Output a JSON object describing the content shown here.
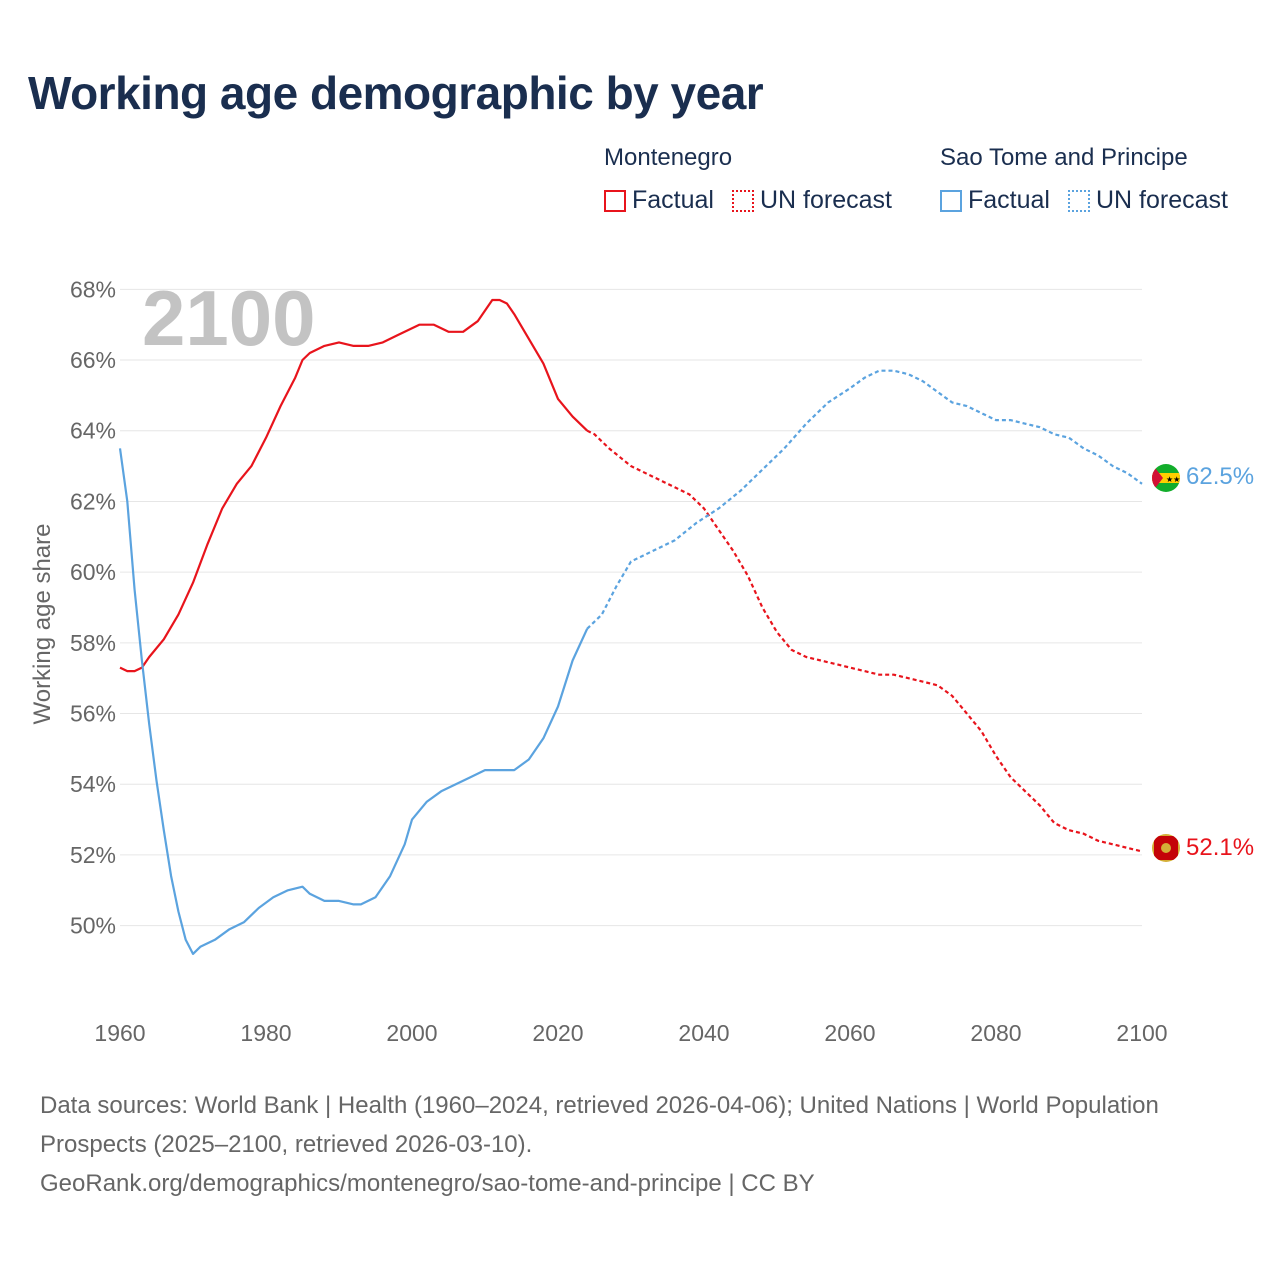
{
  "title": "Working age demographic by year",
  "legend": {
    "groups": [
      {
        "name": "Montenegro",
        "color": "#e8141c",
        "factual": "Factual",
        "forecast": "UN forecast"
      },
      {
        "name": "Sao Tome and Principe",
        "color": "#5ba3df",
        "factual": "Factual",
        "forecast": "UN forecast"
      }
    ]
  },
  "year_label": "2100",
  "footer": {
    "sources": "Data sources: World Bank | Health (1960–2024, retrieved 2026-04-06); United Nations | World Population Prospects (2025–2100, retrieved 2026-03-10).",
    "url": "GeoRank.org/demographics/montenegro/sao-tome-and-principe | CC BY"
  },
  "chart_data": {
    "type": "line",
    "title": "Working age demographic by year",
    "xlabel": "",
    "ylabel": "Working age share",
    "xlim": [
      1960,
      2100
    ],
    "ylim": [
      47.5,
      69
    ],
    "x_ticks": [
      1960,
      1980,
      2000,
      2020,
      2040,
      2060,
      2080,
      2100
    ],
    "y_ticks": [
      50,
      52,
      54,
      56,
      58,
      60,
      62,
      64,
      66,
      68
    ],
    "y_tick_labels": [
      "50%",
      "52%",
      "54%",
      "56%",
      "58%",
      "60%",
      "62%",
      "64%",
      "66%",
      "68%"
    ],
    "grid": true,
    "forecast_start": 2024,
    "series": [
      {
        "name": "Montenegro",
        "color": "#e8141c",
        "end_label": "52.1%",
        "points": [
          [
            1960,
            57.3
          ],
          [
            1961,
            57.2
          ],
          [
            1962,
            57.2
          ],
          [
            1963,
            57.3
          ],
          [
            1964,
            57.6
          ],
          [
            1966,
            58.1
          ],
          [
            1968,
            58.8
          ],
          [
            1970,
            59.7
          ],
          [
            1972,
            60.8
          ],
          [
            1974,
            61.8
          ],
          [
            1976,
            62.5
          ],
          [
            1978,
            63.0
          ],
          [
            1980,
            63.8
          ],
          [
            1982,
            64.7
          ],
          [
            1984,
            65.5
          ],
          [
            1985,
            66.0
          ],
          [
            1986,
            66.2
          ],
          [
            1988,
            66.4
          ],
          [
            1990,
            66.5
          ],
          [
            1992,
            66.4
          ],
          [
            1994,
            66.4
          ],
          [
            1996,
            66.5
          ],
          [
            1998,
            66.7
          ],
          [
            2000,
            66.9
          ],
          [
            2001,
            67.0
          ],
          [
            2003,
            67.0
          ],
          [
            2005,
            66.8
          ],
          [
            2007,
            66.8
          ],
          [
            2009,
            67.1
          ],
          [
            2011,
            67.7
          ],
          [
            2012,
            67.7
          ],
          [
            2013,
            67.6
          ],
          [
            2014,
            67.3
          ],
          [
            2016,
            66.6
          ],
          [
            2018,
            65.9
          ],
          [
            2020,
            64.9
          ],
          [
            2022,
            64.4
          ],
          [
            2024,
            64.0
          ],
          [
            2025,
            63.9
          ],
          [
            2027,
            63.5
          ],
          [
            2030,
            63.0
          ],
          [
            2033,
            62.7
          ],
          [
            2036,
            62.4
          ],
          [
            2038,
            62.2
          ],
          [
            2040,
            61.8
          ],
          [
            2042,
            61.2
          ],
          [
            2044,
            60.6
          ],
          [
            2046,
            59.9
          ],
          [
            2048,
            59.0
          ],
          [
            2050,
            58.3
          ],
          [
            2052,
            57.8
          ],
          [
            2054,
            57.6
          ],
          [
            2056,
            57.5
          ],
          [
            2058,
            57.4
          ],
          [
            2060,
            57.3
          ],
          [
            2062,
            57.2
          ],
          [
            2064,
            57.1
          ],
          [
            2066,
            57.1
          ],
          [
            2068,
            57.0
          ],
          [
            2070,
            56.9
          ],
          [
            2072,
            56.8
          ],
          [
            2074,
            56.5
          ],
          [
            2076,
            56.0
          ],
          [
            2078,
            55.5
          ],
          [
            2080,
            54.8
          ],
          [
            2082,
            54.2
          ],
          [
            2084,
            53.8
          ],
          [
            2086,
            53.4
          ],
          [
            2088,
            52.9
          ],
          [
            2090,
            52.7
          ],
          [
            2092,
            52.6
          ],
          [
            2094,
            52.4
          ],
          [
            2096,
            52.3
          ],
          [
            2098,
            52.2
          ],
          [
            2100,
            52.1
          ]
        ]
      },
      {
        "name": "Sao Tome and Principe",
        "color": "#5ba3df",
        "end_label": "62.5%",
        "points": [
          [
            1960,
            63.5
          ],
          [
            1961,
            62.0
          ],
          [
            1962,
            59.5
          ],
          [
            1963,
            57.5
          ],
          [
            1964,
            55.7
          ],
          [
            1965,
            54.1
          ],
          [
            1966,
            52.7
          ],
          [
            1967,
            51.4
          ],
          [
            1968,
            50.4
          ],
          [
            1969,
            49.6
          ],
          [
            1970,
            49.2
          ],
          [
            1971,
            49.4
          ],
          [
            1973,
            49.6
          ],
          [
            1975,
            49.9
          ],
          [
            1977,
            50.1
          ],
          [
            1979,
            50.5
          ],
          [
            1981,
            50.8
          ],
          [
            1983,
            51.0
          ],
          [
            1985,
            51.1
          ],
          [
            1986,
            50.9
          ],
          [
            1988,
            50.7
          ],
          [
            1990,
            50.7
          ],
          [
            1992,
            50.6
          ],
          [
            1993,
            50.6
          ],
          [
            1995,
            50.8
          ],
          [
            1997,
            51.4
          ],
          [
            1999,
            52.3
          ],
          [
            2000,
            53.0
          ],
          [
            2002,
            53.5
          ],
          [
            2004,
            53.8
          ],
          [
            2006,
            54.0
          ],
          [
            2008,
            54.2
          ],
          [
            2010,
            54.4
          ],
          [
            2012,
            54.4
          ],
          [
            2014,
            54.4
          ],
          [
            2016,
            54.7
          ],
          [
            2018,
            55.3
          ],
          [
            2020,
            56.2
          ],
          [
            2022,
            57.5
          ],
          [
            2024,
            58.4
          ],
          [
            2026,
            58.8
          ],
          [
            2028,
            59.6
          ],
          [
            2030,
            60.3
          ],
          [
            2033,
            60.6
          ],
          [
            2036,
            60.9
          ],
          [
            2039,
            61.4
          ],
          [
            2042,
            61.8
          ],
          [
            2045,
            62.3
          ],
          [
            2048,
            62.9
          ],
          [
            2051,
            63.5
          ],
          [
            2054,
            64.2
          ],
          [
            2057,
            64.8
          ],
          [
            2060,
            65.2
          ],
          [
            2062,
            65.5
          ],
          [
            2064,
            65.7
          ],
          [
            2066,
            65.7
          ],
          [
            2068,
            65.6
          ],
          [
            2070,
            65.4
          ],
          [
            2072,
            65.1
          ],
          [
            2074,
            64.8
          ],
          [
            2076,
            64.7
          ],
          [
            2078,
            64.5
          ],
          [
            2080,
            64.3
          ],
          [
            2082,
            64.3
          ],
          [
            2084,
            64.2
          ],
          [
            2086,
            64.1
          ],
          [
            2088,
            63.9
          ],
          [
            2090,
            63.8
          ],
          [
            2092,
            63.5
          ],
          [
            2094,
            63.3
          ],
          [
            2096,
            63.0
          ],
          [
            2098,
            62.8
          ],
          [
            2100,
            62.5
          ]
        ]
      }
    ]
  }
}
